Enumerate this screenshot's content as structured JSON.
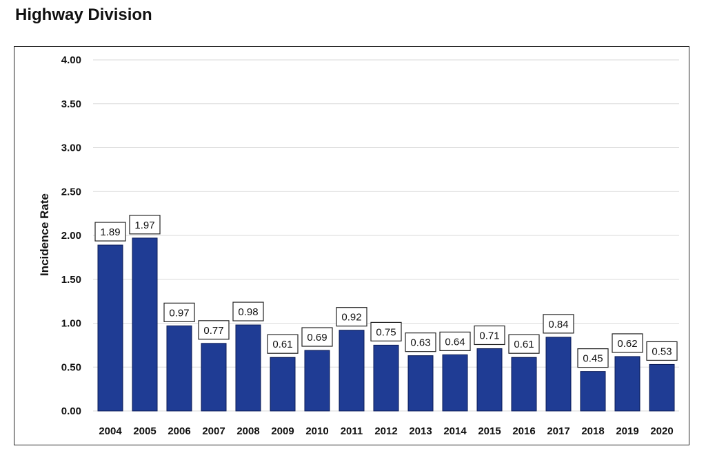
{
  "page": {
    "title": "Highway Division"
  },
  "chart_data": {
    "type": "bar",
    "title": "",
    "xlabel": "",
    "ylabel": "Incidence Rate",
    "categories": [
      "2004",
      "2005",
      "2006",
      "2007",
      "2008",
      "2009",
      "2010",
      "2011",
      "2012",
      "2013",
      "2014",
      "2015",
      "2016",
      "2017",
      "2018",
      "2019",
      "2020"
    ],
    "values": [
      1.89,
      1.97,
      0.97,
      0.77,
      0.98,
      0.61,
      0.69,
      0.92,
      0.75,
      0.63,
      0.64,
      0.71,
      0.61,
      0.84,
      0.45,
      0.62,
      0.53
    ],
    "value_labels": [
      "1.89",
      "1.97",
      "0.97",
      "0.77",
      "0.98",
      "0.61",
      "0.69",
      "0.92",
      "0.75",
      "0.63",
      "0.64",
      "0.71",
      "0.61",
      "0.84",
      "0.45",
      "0.62",
      "0.53"
    ],
    "y_ticks": [
      "0.00",
      "0.50",
      "1.00",
      "1.50",
      "2.00",
      "2.50",
      "3.00",
      "3.50",
      "4.00"
    ],
    "y_tick_values": [
      0,
      0.5,
      1.0,
      1.5,
      2.0,
      2.5,
      3.0,
      3.5,
      4.0
    ],
    "ylim": [
      0,
      4
    ],
    "grid": true,
    "legend": "none",
    "bar_color": "#1f3c94",
    "bar_edge_color": "#0a1a55"
  }
}
